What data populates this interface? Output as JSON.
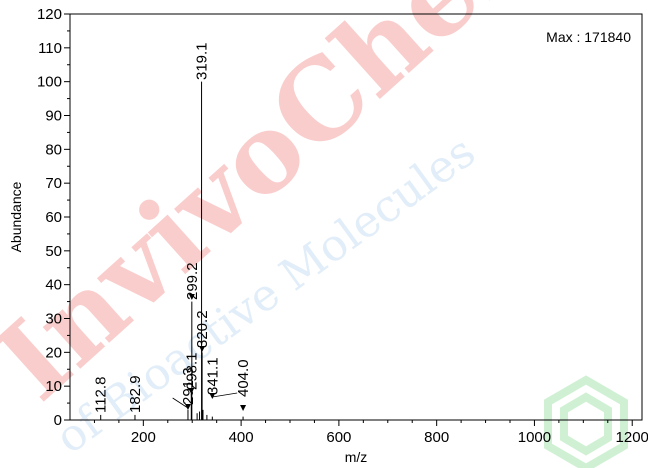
{
  "chart_data": {
    "type": "line",
    "title": "",
    "xlabel": "m/z",
    "ylabel": "Abundance",
    "xlim": [
      50,
      1220
    ],
    "ylim": [
      0,
      120
    ],
    "x_ticks": [
      200,
      400,
      600,
      800,
      1000,
      1200
    ],
    "y_ticks": [
      0,
      10,
      20,
      30,
      40,
      50,
      60,
      70,
      80,
      90,
      100,
      110,
      120
    ],
    "grid": false,
    "legend": "none",
    "max_label": "Max : 171840",
    "series": [
      {
        "peaks": [
          {
            "x": 112.8,
            "y": 1.5
          },
          {
            "x": 182.9,
            "y": 1.5
          },
          {
            "x": 291.3,
            "y": 3.0
          },
          {
            "x": 298.1,
            "y": 8.0
          },
          {
            "x": 299.2,
            "y": 35.0
          },
          {
            "x": 310.0,
            "y": 2.0
          },
          {
            "x": 315.0,
            "y": 2.5
          },
          {
            "x": 319.1,
            "y": 100.0
          },
          {
            "x": 320.2,
            "y": 20.0
          },
          {
            "x": 322.0,
            "y": 3.0
          },
          {
            "x": 330.0,
            "y": 1.5
          },
          {
            "x": 341.1,
            "y": 1.0
          },
          {
            "x": 404.0,
            "y": 1.0
          }
        ]
      }
    ],
    "annotations": [
      {
        "text": "112.8",
        "x": 112.8,
        "y": 1.5
      },
      {
        "text": "182.9",
        "x": 182.9,
        "y": 1.5
      },
      {
        "text": "291.3",
        "x": 291.3,
        "y": 3.0
      },
      {
        "text": "298.1",
        "x": 298.1,
        "y": 8.0
      },
      {
        "text": "299.2",
        "x": 299.2,
        "y": 35.0
      },
      {
        "text": "319.1",
        "x": 319.1,
        "y": 100.0
      },
      {
        "text": "320.2",
        "x": 320.2,
        "y": 20.0
      },
      {
        "text": "341.1",
        "x": 341.1,
        "y": 1.0
      },
      {
        "text": "404.0",
        "x": 404.0,
        "y": 1.0
      }
    ]
  },
  "watermark": {
    "brand": "InvivoChem",
    "tagline": "of Bioactive Molecules",
    "brand_color": "#e8201c",
    "tagline_color": "#f0c020",
    "tagline_color_2": "#7ab0e0",
    "logo_color": "#30c040"
  }
}
